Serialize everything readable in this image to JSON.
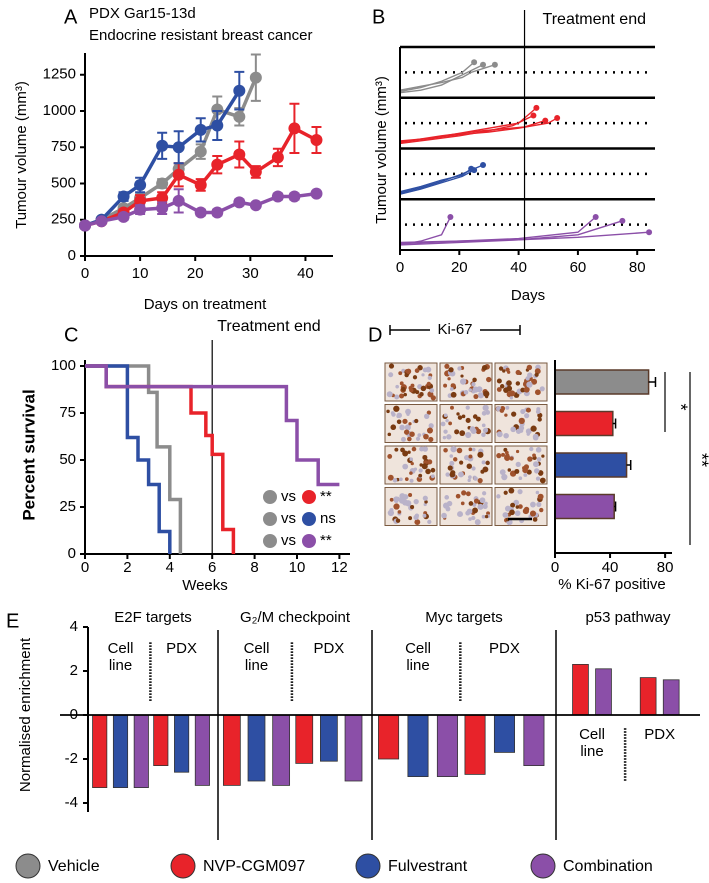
{
  "legend": [
    {
      "name": "Vehicle",
      "color": "#8c8c8c"
    },
    {
      "name": "NVP-CGM097",
      "color": "#e8232a"
    },
    {
      "name": "Fulvestrant",
      "color": "#2e4fa3"
    },
    {
      "name": "Combination",
      "color": "#8b4fa8"
    }
  ],
  "chart_data": [
    {
      "type": "line",
      "label": "A",
      "title": "PDX Gar15-13d",
      "subtitle": "Endocrine resistant breast cancer",
      "xlabel": "Days on treatment",
      "ylabel": "Tumour volume (mm³)",
      "xlim": [
        0,
        45
      ],
      "ylim": [
        0,
        1400
      ],
      "xticks": [
        0,
        10,
        20,
        30,
        40
      ],
      "yticks": [
        0,
        250,
        500,
        750,
        1000,
        1250
      ],
      "series": [
        {
          "color": "#8c8c8c",
          "x": [
            0,
            3,
            7,
            10,
            14,
            17,
            21,
            24,
            28,
            31
          ],
          "values": [
            210,
            250,
            330,
            400,
            500,
            600,
            720,
            1010,
            960,
            1230
          ],
          "errors": [
            10,
            15,
            20,
            25,
            30,
            40,
            50,
            90,
            60,
            160
          ]
        },
        {
          "color": "#e8232a",
          "x": [
            0,
            3,
            7,
            10,
            14,
            17,
            21,
            24,
            28,
            31,
            35,
            38,
            42
          ],
          "values": [
            210,
            240,
            300,
            380,
            400,
            560,
            490,
            630,
            700,
            580,
            680,
            880,
            800
          ],
          "errors": [
            10,
            15,
            20,
            40,
            40,
            80,
            40,
            60,
            90,
            40,
            60,
            170,
            90
          ]
        },
        {
          "color": "#2e4fa3",
          "x": [
            0,
            3,
            7,
            10,
            14,
            17,
            21,
            24,
            28
          ],
          "values": [
            210,
            250,
            410,
            490,
            760,
            750,
            870,
            900,
            1140
          ],
          "errors": [
            10,
            15,
            30,
            50,
            90,
            110,
            80,
            100,
            130
          ]
        },
        {
          "color": "#8b4fa8",
          "x": [
            0,
            3,
            7,
            10,
            14,
            17,
            21,
            24,
            28,
            31,
            35,
            38,
            42
          ],
          "values": [
            210,
            240,
            270,
            320,
            330,
            380,
            300,
            300,
            370,
            350,
            410,
            410,
            430
          ],
          "errors": [
            10,
            10,
            20,
            30,
            40,
            80,
            20,
            20,
            20,
            15,
            20,
            20,
            15
          ]
        }
      ]
    },
    {
      "type": "spaghetti",
      "label": "B",
      "annotation": "Treatment end",
      "treatment_end": 42,
      "xlabel": "Days",
      "ylabel": "Tumour volume (mm³)",
      "xlim": [
        0,
        86
      ],
      "xticks": [
        0,
        20,
        40,
        60,
        80
      ],
      "ylim": [
        0,
        2000
      ],
      "threshold": 1000,
      "series": [
        {
          "color": "#8c8c8c",
          "tumours": [
            {
              "x": [
                0,
                7,
                14,
                21,
                25
              ],
              "values": [
                250,
                400,
                650,
                1000,
                1400
              ]
            },
            {
              "x": [
                0,
                7,
                14,
                21,
                28
              ],
              "values": [
                200,
                300,
                500,
                900,
                1300
              ]
            },
            {
              "x": [
                0,
                7,
                14,
                21,
                24,
                28,
                32
              ],
              "values": [
                300,
                450,
                600,
                800,
                1000,
                1150,
                1300
              ]
            }
          ]
        },
        {
          "color": "#e8232a",
          "tumours": [
            {
              "x": [
                0,
                10,
                20,
                30,
                40,
                46
              ],
              "values": [
                250,
                400,
                600,
                800,
                1000,
                1600
              ]
            },
            {
              "x": [
                0,
                10,
                20,
                30,
                38,
                45
              ],
              "values": [
                200,
                350,
                500,
                700,
                900,
                1300
              ]
            },
            {
              "x": [
                0,
                10,
                20,
                30,
                40,
                50,
                53
              ],
              "values": [
                300,
                400,
                550,
                650,
                800,
                1000,
                1200
              ]
            },
            {
              "x": [
                0,
                14,
                28,
                42,
                49
              ],
              "values": [
                250,
                500,
                700,
                850,
                1100
              ]
            }
          ]
        },
        {
          "color": "#2e4fa3",
          "tumours": [
            {
              "x": [
                0,
                7,
                14,
                21,
                28
              ],
              "values": [
                250,
                450,
                700,
                1000,
                1350
              ]
            },
            {
              "x": [
                0,
                7,
                14,
                21,
                25
              ],
              "values": [
                200,
                400,
                650,
                900,
                1150
              ]
            },
            {
              "x": [
                0,
                7,
                14,
                21,
                24
              ],
              "values": [
                300,
                500,
                750,
                950,
                1200
              ]
            }
          ]
        },
        {
          "color": "#8b4fa8",
          "tumours": [
            {
              "x": [
                0,
                7,
                14,
                17
              ],
              "values": [
                200,
                350,
                600,
                1300
              ]
            },
            {
              "x": [
                0,
                20,
                40,
                60,
                66
              ],
              "values": [
                250,
                350,
                450,
                700,
                1300
              ]
            },
            {
              "x": [
                0,
                20,
                40,
                60,
                75
              ],
              "values": [
                200,
                300,
                400,
                600,
                1150
              ]
            },
            {
              "x": [
                0,
                20,
                40,
                60,
                84
              ],
              "values": [
                300,
                350,
                400,
                500,
                700
              ]
            }
          ]
        }
      ]
    },
    {
      "type": "survival",
      "label": "C",
      "annotation": "Treatment end",
      "treatment_end": 6,
      "xlabel": "Weeks",
      "ylabel": "Percent survival",
      "xlim": [
        0,
        12.5
      ],
      "ylim": [
        0,
        100
      ],
      "xticks": [
        0,
        2,
        4,
        6,
        8,
        10,
        12
      ],
      "yticks": [
        0,
        25,
        50,
        75,
        100
      ],
      "series": [
        {
          "color": "#8c8c8c",
          "x": [
            0,
            3,
            3.4,
            4,
            4.5
          ],
          "values": [
            100,
            86,
            57,
            29,
            0
          ]
        },
        {
          "color": "#e8232a",
          "x": [
            0,
            1,
            5,
            5.7,
            6,
            6.5,
            7
          ],
          "values": [
            100,
            89,
            75,
            63,
            53,
            13,
            0
          ]
        },
        {
          "color": "#2e4fa3",
          "x": [
            0,
            2,
            2.5,
            3,
            3.5,
            4
          ],
          "values": [
            100,
            62,
            50,
            37,
            12,
            0
          ]
        },
        {
          "color": "#8b4fa8",
          "x": [
            0,
            1,
            9.5,
            10,
            11,
            12
          ],
          "values": [
            100,
            89,
            71,
            50,
            37,
            37
          ]
        }
      ],
      "comparisons": [
        {
          "colors": [
            "#8c8c8c",
            "#e8232a"
          ],
          "text": "vs",
          "significance": "**"
        },
        {
          "colors": [
            "#8c8c8c",
            "#2e4fa3"
          ],
          "text": "vs",
          "significance": "ns"
        },
        {
          "colors": [
            "#8c8c8c",
            "#8b4fa8"
          ],
          "text": "vs",
          "significance": "**"
        }
      ]
    },
    {
      "type": "hbar",
      "label": "D",
      "header": "Ki-67",
      "xlabel": "% Ki-67 positive",
      "xlim": [
        0,
        85
      ],
      "xticks": [
        0,
        40,
        80
      ],
      "values": [
        68,
        42,
        52,
        43
      ],
      "errors": [
        5,
        2,
        3,
        1
      ],
      "colors": [
        "#8c8c8c",
        "#e8232a",
        "#2e4fa3",
        "#8b4fa8"
      ],
      "annotations": [
        "*",
        "**"
      ]
    },
    {
      "type": "grouped-bar",
      "label": "E",
      "ylabel": "Normalised enrichment",
      "ylim": [
        -4,
        4
      ],
      "yticks": [
        -4,
        -2,
        0,
        2,
        4
      ],
      "colors": [
        "#e8232a",
        "#2e4fa3",
        "#8b4fa8"
      ],
      "panels": [
        {
          "title": "E2F targets",
          "groups": [
            {
              "name": "Cell line",
              "values": [
                -3.3,
                -3.3,
                -3.3
              ]
            },
            {
              "name": "PDX",
              "values": [
                -2.3,
                -2.6,
                -3.2
              ]
            }
          ]
        },
        {
          "title": "G₂/M checkpoint",
          "groups": [
            {
              "name": "Cell line",
              "values": [
                -3.2,
                -3.0,
                -3.2
              ]
            },
            {
              "name": "PDX",
              "values": [
                -2.2,
                -2.1,
                -3.0
              ]
            }
          ]
        },
        {
          "title": "Myc targets",
          "groups": [
            {
              "name": "Cell line",
              "values": [
                -2.0,
                -2.8,
                -2.8
              ]
            },
            {
              "name": "PDX",
              "values": [
                -2.7,
                -1.7,
                -2.3
              ]
            }
          ]
        },
        {
          "title": "p53 pathway",
          "groups": [
            {
              "name": "Cell line",
              "values": [
                2.3,
                null,
                2.1
              ]
            },
            {
              "name": "PDX",
              "values": [
                1.7,
                null,
                1.6
              ]
            }
          ]
        }
      ]
    }
  ]
}
